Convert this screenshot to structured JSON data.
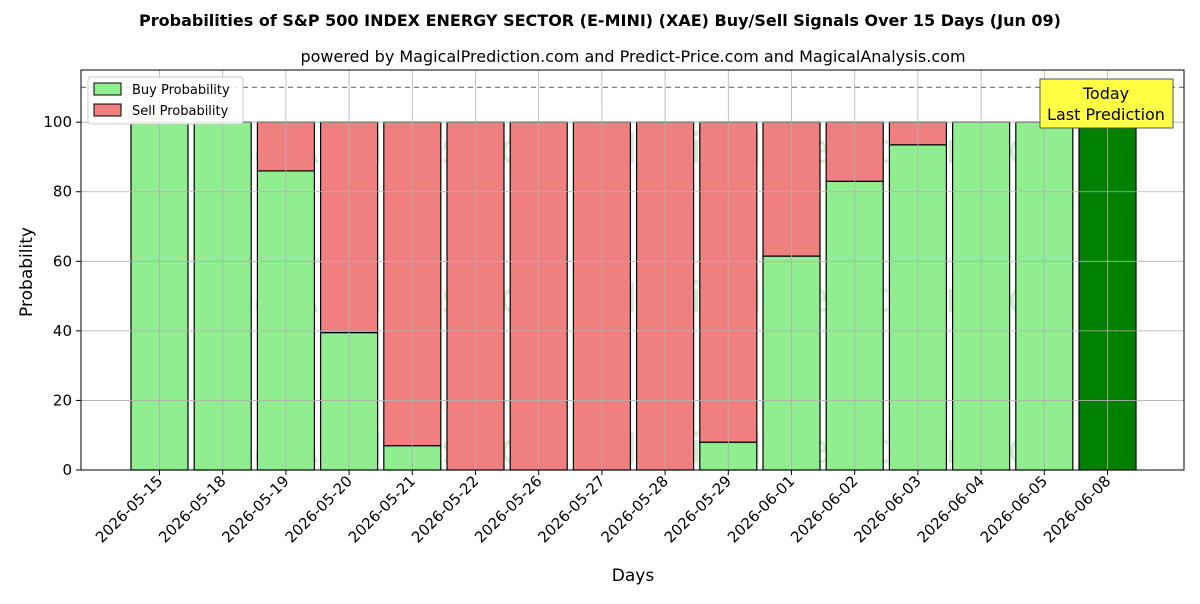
{
  "title": "Probabilities of S&P 500 INDEX ENERGY SECTOR (E-MINI) (XAE) Buy/Sell Signals Over 15 Days (Jun 09)",
  "subtitle": "powered by MagicalPrediction.com and Predict-Price.com and MagicalAnalysis.com",
  "watermarks": [
    "MagicalAnalysis.com",
    "MagicalPrediction.com"
  ],
  "annotation": {
    "line1": "Today",
    "line2": "Last Prediction",
    "color": "#ffff44"
  },
  "colors": {
    "buy": "#90ee90",
    "sell": "#f08080",
    "today_buy": "#008000",
    "edge": "#000000",
    "grid": "#b0b0b0"
  },
  "chart_data": {
    "type": "bar",
    "stacked": true,
    "xlabel": "Days",
    "ylabel": "Probability",
    "ylim": [
      0,
      115
    ],
    "yticks": [
      0,
      20,
      40,
      60,
      80,
      100
    ],
    "reference_line": 110,
    "grid": true,
    "legend_position": "top-left",
    "categories": [
      "2026-05-15",
      "2026-05-18",
      "2026-05-19",
      "2026-05-20",
      "2026-05-21",
      "2026-05-22",
      "2026-05-26",
      "2026-05-27",
      "2026-05-28",
      "2026-05-29",
      "2026-06-01",
      "2026-06-02",
      "2026-06-03",
      "2026-06-04",
      "2026-06-05",
      "2026-06-08"
    ],
    "series": [
      {
        "name": "Buy Probability",
        "values": [
          100,
          100,
          86,
          39.5,
          7,
          0,
          0,
          0,
          0,
          8,
          61.5,
          83,
          93.5,
          100,
          100,
          100
        ]
      },
      {
        "name": "Sell Probability",
        "values": [
          0,
          0,
          14,
          60.5,
          93,
          100,
          100,
          100,
          100,
          92,
          38.5,
          17,
          6.5,
          0,
          0,
          0
        ]
      }
    ]
  }
}
